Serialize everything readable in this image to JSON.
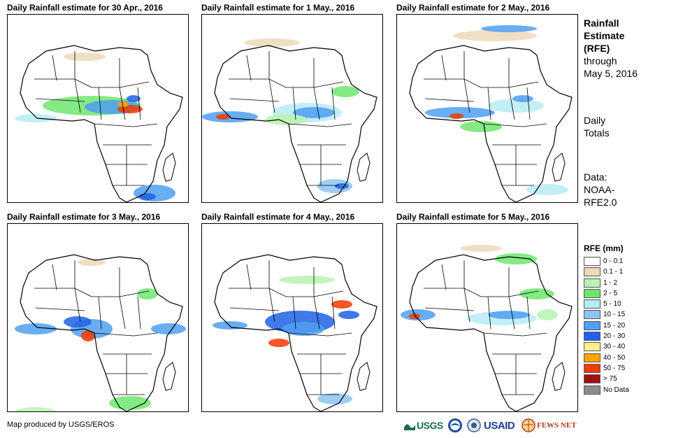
{
  "panels": [
    {
      "title": "Daily Rainfall estimate for 30 Apr., 2016"
    },
    {
      "title": "Daily Rainfall estimate for 1 May., 2016"
    },
    {
      "title": "Daily Rainfall estimate for 2 May., 2016"
    },
    {
      "title": "Daily Rainfall estimate for 3 May., 2016"
    },
    {
      "title": "Daily Rainfall estimate for 4 May., 2016"
    },
    {
      "title": "Daily Rainfall estimate for 5 May., 2016"
    }
  ],
  "sidebar": {
    "heading_lines": [
      "Rainfall",
      "Estimate",
      "(RFE)"
    ],
    "through_lines": [
      "through",
      "May 5, 2016"
    ],
    "daily_lines": [
      "Daily",
      "Totals"
    ],
    "data_lines": [
      "Data:",
      "NOAA-",
      "RFE2.0"
    ]
  },
  "legend": {
    "title": "RFE (mm)",
    "items": [
      {
        "label": "0 - 0.1",
        "color": "#ffffff"
      },
      {
        "label": "0.1 - 1",
        "color": "#ecd9b9"
      },
      {
        "label": "1 - 2",
        "color": "#b9f2b1"
      },
      {
        "label": "2 - 5",
        "color": "#6ee66e"
      },
      {
        "label": "5 - 10",
        "color": "#b7ecf4"
      },
      {
        "label": "10 - 15",
        "color": "#8dc4f2"
      },
      {
        "label": "15 - 20",
        "color": "#4f9ff0"
      },
      {
        "label": "20 - 30",
        "color": "#1f62e6"
      },
      {
        "label": "30 - 40",
        "color": "#fff08a"
      },
      {
        "label": "40 - 50",
        "color": "#fba300"
      },
      {
        "label": "50 - 75",
        "color": "#f23a00"
      },
      {
        "label": "> 75",
        "color": "#a01212"
      },
      {
        "label": "No Data",
        "color": "#8c8c8c"
      }
    ]
  },
  "footer": {
    "credit": "Map produced by USGS/EROS",
    "logos": [
      "USGS",
      "NOAA",
      "USAID",
      "FEWS NET"
    ]
  }
}
